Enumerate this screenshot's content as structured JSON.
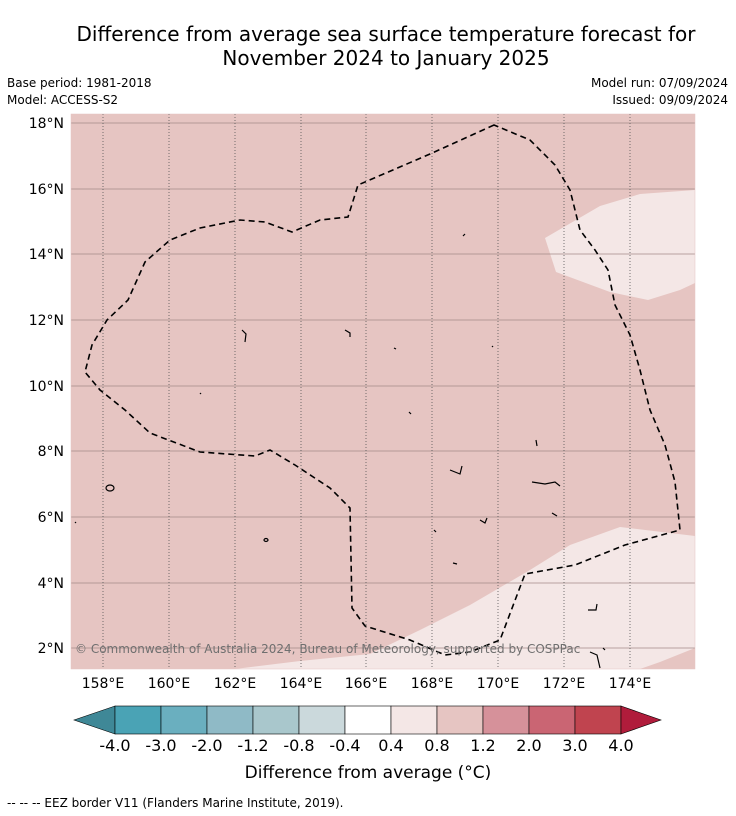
{
  "title_line1": "Difference from average sea surface temperature forecast for",
  "title_line2": "November 2024 to January 2025",
  "base_period": "Base period: 1981-2018",
  "model": "Model: ACCESS-S2",
  "model_run": "Model run: 07/09/2024",
  "issued": "Issued: 09/09/2024",
  "copyright": "© Commonwealth of Australia 2024, Bureau of Meteorology, supported by COSPPac",
  "lat_labels": [
    "18°N",
    "16°N",
    "14°N",
    "12°N",
    "10°N",
    "8°N",
    "6°N",
    "4°N",
    "2°N"
  ],
  "lon_labels": [
    "158°E",
    "160°E",
    "162°E",
    "164°E",
    "166°E",
    "168°E",
    "170°E",
    "172°E",
    "174°E"
  ],
  "colorbar": {
    "title": "Difference from average (°C)",
    "tick_labels": [
      "-4.0",
      "-3.0",
      "-2.0",
      "-1.2",
      "-0.8",
      "-0.4",
      "0.4",
      "0.8",
      "1.2",
      "2.0",
      "3.0",
      "4.0"
    ],
    "colors": [
      "#3f8897",
      "#4aa3b5",
      "#6aafbf",
      "#8fbac6",
      "#a9c7cc",
      "#cbd9dc",
      "#ffffff",
      "#f4e7e6",
      "#e6c5c2",
      "#d6919a",
      "#ca6573",
      "#c0444f",
      "#b01c3b"
    ]
  },
  "legend_note": "--  --  -- EEZ border V11 (Flanders Marine Institute, 2019)."
}
